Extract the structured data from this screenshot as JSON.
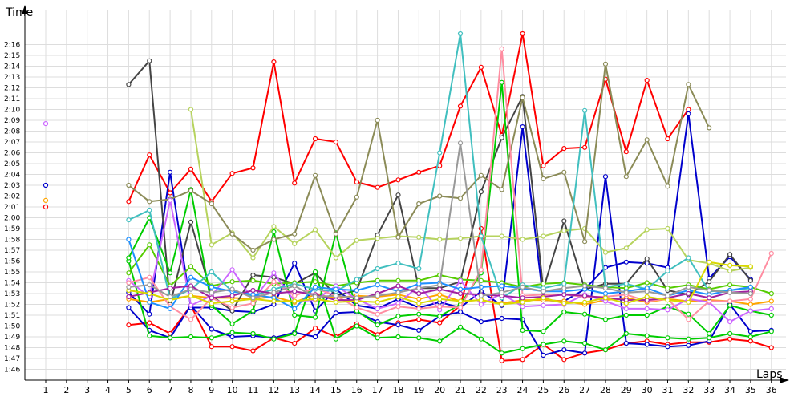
{
  "chart_data": {
    "type": "line",
    "ylabel": "Time",
    "xlabel": "Laps",
    "x_categories": [
      "1",
      "2",
      "3",
      "4",
      "5",
      "6",
      "7",
      "8",
      "9",
      "10",
      "11",
      "12",
      "13",
      "14",
      "15",
      "16",
      "17",
      "18",
      "19",
      "20",
      "21",
      "22",
      "23",
      "24",
      "25",
      "26",
      "27",
      "28",
      "29",
      "30",
      "31",
      "32",
      "33",
      "34",
      "35",
      "36"
    ],
    "y_ticks": [
      "1:46",
      "1:47",
      "1:48",
      "1:49",
      "1:50",
      "1:51",
      "1:52",
      "1:53",
      "1:54",
      "1:55",
      "1:56",
      "1:57",
      "1:58",
      "1:59",
      "2:00",
      "2:01",
      "2:02",
      "2:03",
      "2:04",
      "2:05",
      "2:06",
      "2:07",
      "2:08",
      "2:09",
      "2:10",
      "2:11",
      "2:12",
      "2:13",
      "2:14",
      "2:15",
      "2:16"
    ],
    "y_unit": "seconds",
    "ylim": [
      105,
      137
    ],
    "grid": true,
    "series": [
      {
        "color": "#ff0000",
        "values": [
          121,
          null,
          null,
          null,
          121.5,
          125.8,
          122.3,
          124.5,
          121.5,
          124.1,
          124.6,
          134.4,
          123.2,
          127.3,
          127.0,
          123.3,
          122.8,
          123.5,
          124.2,
          124.8,
          130.3,
          133.9,
          127.6,
          137,
          124.8,
          126.4,
          126.5,
          132.8,
          126.1,
          132.7,
          127.3,
          130.0,
          null,
          null,
          null,
          null
        ]
      },
      {
        "color": "#ff0000",
        "values": [
          null,
          null,
          null,
          null,
          110.1,
          110.3,
          109.3,
          111.9,
          108.1,
          108.1,
          107.7,
          108.9,
          108.4,
          109.8,
          109.0,
          110.2,
          109.2,
          110.3,
          110.6,
          110.3,
          111.9,
          119.0,
          106.8,
          106.9,
          108.3,
          106.9,
          107.5,
          107.8,
          108.4,
          108.6,
          108.3,
          108.5,
          108.5,
          108.8,
          108.6,
          108.0
        ]
      },
      {
        "color": "#0000cc",
        "values": [
          123,
          null,
          null,
          null,
          111.7,
          109.6,
          108.9,
          111.9,
          109.7,
          109.0,
          109.1,
          108.9,
          109.4,
          109.0,
          111.2,
          111.3,
          110.4,
          110.1,
          109.6,
          110.9,
          111.3,
          110.4,
          110.7,
          110.6,
          107.3,
          107.8,
          107.5,
          123.8,
          108.4,
          108.3,
          108.1,
          108.2,
          108.6,
          112.0,
          109.5,
          109.6
        ]
      },
      {
        "color": "#0000cc",
        "values": [
          null,
          null,
          null,
          null,
          113.1,
          111.1,
          124.2,
          111.7,
          111.7,
          111.4,
          111.3,
          112.0,
          115.8,
          111.4,
          113.4,
          111.9,
          111.6,
          112.5,
          111.7,
          112.2,
          111.7,
          113.2,
          111.9,
          128.4,
          112.4,
          112.3,
          113.4,
          115.4,
          115.9,
          115.8,
          115.4,
          129.6,
          114.4,
          116.4,
          114.3,
          null
        ]
      },
      {
        "color": "#ffa500",
        "values": [
          121.6,
          null,
          null,
          null,
          112.5,
          112.2,
          112.5,
          112.8,
          112.6,
          112.6,
          112.5,
          112.7,
          112.2,
          112.9,
          112.6,
          112.8,
          112.7,
          112.9,
          112.5,
          112.9,
          112.3,
          112.4,
          112.1,
          112.4,
          112.4,
          112.3,
          112.0,
          112.4,
          112.6,
          112.2,
          112.5,
          112.3,
          112.4,
          112.3,
          112.0,
          112.3
        ]
      },
      {
        "color": "#444444",
        "values": [
          null,
          null,
          null,
          null,
          132.3,
          134.5,
          112.0,
          119.6,
          112.8,
          111.4,
          114.7,
          114.5,
          113.9,
          114.9,
          112.8,
          113.3,
          118.4,
          122.1,
          113.5,
          113.5,
          114.1,
          122.4,
          127.4,
          131.2,
          113.4,
          119.7,
          113.4,
          113.9,
          113.9,
          116.2,
          113.3,
          112.9,
          114.1,
          116.6,
          114.2,
          null
        ]
      },
      {
        "color": "#00cc00",
        "values": [
          null,
          null,
          null,
          null,
          116.0,
          109.1,
          108.9,
          109.0,
          108.9,
          109.4,
          109.3,
          108.8,
          109.3,
          115.0,
          108.8,
          110.0,
          108.9,
          109.0,
          108.9,
          108.6,
          109.9,
          108.8,
          107.5,
          107.9,
          108.3,
          108.6,
          108.4,
          107.8,
          109.3,
          109.1,
          108.9,
          108.8,
          108.9,
          109.3,
          109.0,
          109.5
        ]
      },
      {
        "color": "#00cc00",
        "values": [
          null,
          null,
          null,
          null,
          116.3,
          120.0,
          114.9,
          122.6,
          111.9,
          110.2,
          111.4,
          118.7,
          111.0,
          110.8,
          118.6,
          111.4,
          110.1,
          110.9,
          111.1,
          110.9,
          112.0,
          114.9,
          132.5,
          109.6,
          109.5,
          111.3,
          111.1,
          110.6,
          111.0,
          111.0,
          111.8,
          111.1,
          109.3,
          111.9,
          111.4,
          111.0
        ]
      },
      {
        "color": "#55cc00",
        "values": [
          null,
          null,
          null,
          null,
          114.9,
          117.5,
          113.7,
          115.5,
          113.7,
          114.1,
          114.2,
          113.9,
          114.0,
          114.1,
          113.7,
          114.0,
          114.2,
          114.2,
          114.2,
          114.7,
          114.3,
          114.2,
          114.0,
          113.6,
          113.9,
          114.0,
          113.8,
          113.6,
          113.5,
          114.0,
          113.5,
          113.8,
          113.4,
          113.8,
          113.6,
          113.0
        ]
      },
      {
        "color": "#b6d35d",
        "values": [
          null,
          null,
          null,
          null,
          null,
          null,
          null,
          130.0,
          117.5,
          118.6,
          116.3,
          119.2,
          117.6,
          118.9,
          116.3,
          117.9,
          118.1,
          118.3,
          118.2,
          118.0,
          118.1,
          118.3,
          118.3,
          118.0,
          118.3,
          118.8,
          119.0,
          116.8,
          117.2,
          118.9,
          119.0,
          116.1,
          115.8,
          115.1,
          115.4,
          null
        ]
      },
      {
        "color": "#8b8b57",
        "values": [
          null,
          null,
          null,
          null,
          123.0,
          121.5,
          121.7,
          122.5,
          121.3,
          118.5,
          117.0,
          118.0,
          118.5,
          123.9,
          118.5,
          121.9,
          129.0,
          118.2,
          121.3,
          122.0,
          121.8,
          123.9,
          122.6,
          131.1,
          123.6,
          124.2,
          117.8,
          134.2,
          123.8,
          127.2,
          122.9,
          132.3,
          128.3,
          null,
          null,
          null
        ]
      },
      {
        "color": "#cc66ff",
        "values": [
          128.7,
          null,
          null,
          null,
          114.2,
          112.7,
          121.6,
          111.9,
          112.8,
          115.2,
          112.4,
          114.9,
          112.3,
          112.4,
          113.7,
          112.5,
          111.6,
          112.1,
          113.7,
          111.5,
          114.2,
          112.0,
          113.0,
          111.8,
          111.9,
          112.0,
          112.9,
          112.3,
          111.6,
          111.6,
          111.5,
          112.5,
          112.2,
          110.4,
          111.4,
          111.6
        ]
      },
      {
        "color": "#ff8da1",
        "values": [
          null,
          null,
          null,
          null,
          114.0,
          114.5,
          111.8,
          110.6,
          112.6,
          111.7,
          112.1,
          114.1,
          112.8,
          113.5,
          112.8,
          111.7,
          111.1,
          111.8,
          111.6,
          111.8,
          111.7,
          115.2,
          135.6,
          112.8,
          112.9,
          112.9,
          112.7,
          112.7,
          112.9,
          112.3,
          112.5,
          110.6,
          112.3,
          112.3,
          112.5,
          116.7
        ]
      },
      {
        "color": "#40bfbf",
        "values": [
          null,
          null,
          null,
          null,
          119.8,
          120.7,
          112.5,
          113.4,
          115.0,
          113.2,
          112.8,
          113.4,
          113.9,
          113.4,
          113.2,
          114.3,
          115.3,
          115.8,
          115.3,
          126.0,
          137,
          118.3,
          112.6,
          113.8,
          113.5,
          113.9,
          129.9,
          113.6,
          113.9,
          113.4,
          115.1,
          116.3,
          113.2,
          113.3,
          113.5,
          null
        ]
      },
      {
        "color": "#1e90ff",
        "values": [
          null,
          null,
          null,
          null,
          118.0,
          112.2,
          111.6,
          114.5,
          113.6,
          113.2,
          112.9,
          112.6,
          111.6,
          113.6,
          113.4,
          113.3,
          113.8,
          113.2,
          113.9,
          114.0,
          113.4,
          113.6,
          113.7,
          113.5,
          113.2,
          113.2,
          113.4,
          113.0,
          113.2,
          113.5,
          112.8,
          113.3,
          112.9,
          113.3,
          113.6,
          null
        ]
      },
      {
        "color": "#a020a0",
        "values": [
          null,
          null,
          null,
          null,
          112.7,
          113.1,
          113.5,
          113.7,
          112.6,
          112.8,
          113.3,
          113.0,
          113.2,
          112.9,
          112.4,
          112.4,
          113.0,
          113.7,
          113.0,
          113.4,
          113.0,
          112.9,
          112.8,
          112.6,
          112.7,
          112.9,
          112.8,
          112.6,
          112.4,
          112.4,
          112.6,
          113.0,
          112.6,
          113.1,
          113.2,
          null
        ]
      },
      {
        "color": "#d8d800",
        "values": [
          null,
          null,
          null,
          null,
          113.3,
          113.0,
          112.4,
          112.8,
          112.1,
          112.3,
          112.5,
          112.3,
          112.3,
          112.5,
          112.2,
          112.3,
          112.2,
          112.7,
          112.1,
          112.5,
          112.3,
          112.4,
          112.0,
          112.2,
          112.6,
          112.1,
          112.2,
          112.6,
          112.1,
          112.7,
          112.4,
          112.2,
          115.9,
          115.6,
          115.5,
          null
        ]
      },
      {
        "color": "#999999",
        "values": [
          null,
          null,
          null,
          null,
          113.6,
          113.8,
          112.7,
          113.4,
          113.1,
          113.4,
          112.6,
          113.1,
          113.7,
          112.7,
          112.8,
          112.6,
          112.8,
          113.1,
          113.5,
          113.8,
          126.9,
          112.8,
          113.1,
          113.6,
          113.2,
          113.5,
          113.7,
          113.5,
          113.1,
          113.2,
          112.8,
          113.6,
          113.3,
          113.1,
          113.0,
          null
        ]
      }
    ]
  }
}
